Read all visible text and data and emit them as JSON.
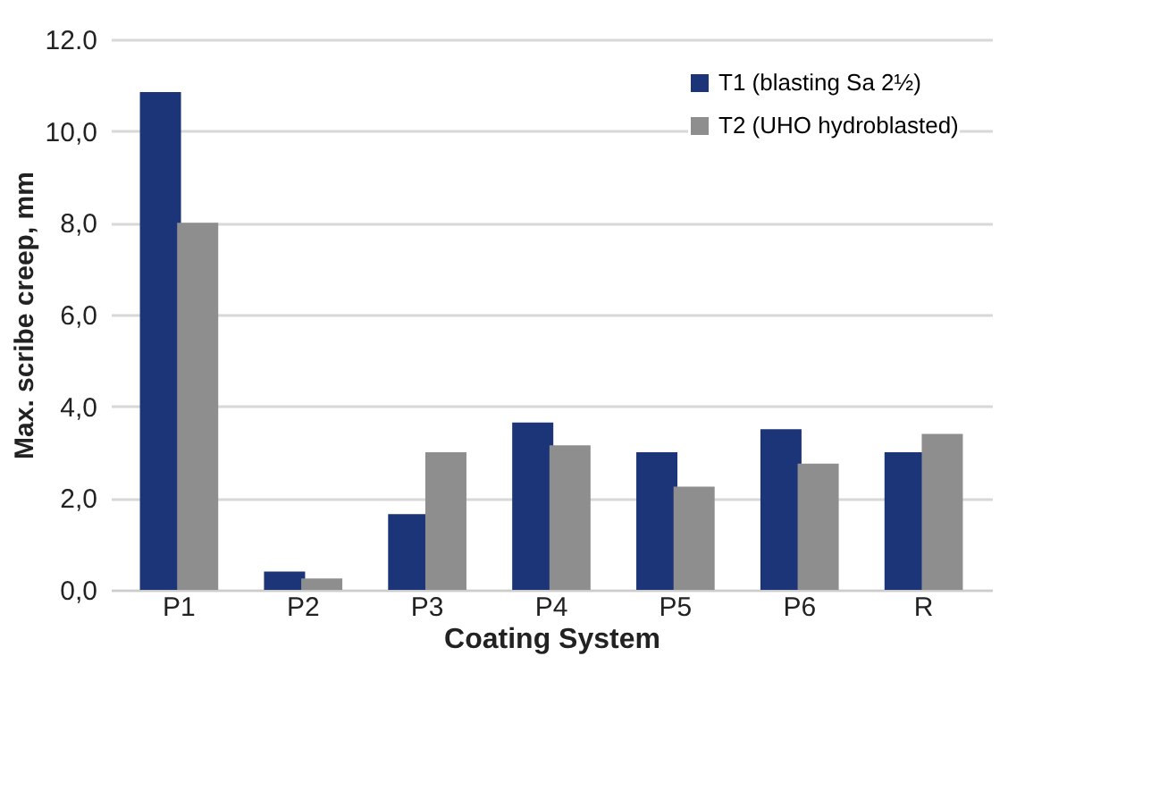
{
  "chart_data": {
    "type": "bar",
    "xlabel": "Coating System",
    "ylabel": "Max. scribe creep, mm",
    "categories": [
      "P1",
      "P2",
      "P3",
      "P4",
      "P5",
      "P6",
      "R"
    ],
    "series": [
      {
        "name": "T1 (blasting Sa 2½)",
        "color": "#1c3478",
        "values": [
          10.85,
          0.4,
          1.65,
          3.65,
          3.0,
          3.5,
          3.0
        ]
      },
      {
        "name": "T2 (UHO hydroblasted)",
        "color": "#8e8e8e",
        "values": [
          8.0,
          0.25,
          3.0,
          3.15,
          2.25,
          2.75,
          3.4
        ]
      }
    ],
    "ylim": [
      0,
      12
    ],
    "yticks": [
      {
        "value": 0,
        "label": "0,0"
      },
      {
        "value": 2,
        "label": "2,0"
      },
      {
        "value": 4,
        "label": "4,0"
      },
      {
        "value": 6,
        "label": "6,0"
      },
      {
        "value": 8,
        "label": "8,0"
      },
      {
        "value": 10,
        "label": "10,0"
      },
      {
        "value": 12,
        "label": "12.0"
      }
    ],
    "grid": "y",
    "legend": "top right"
  }
}
